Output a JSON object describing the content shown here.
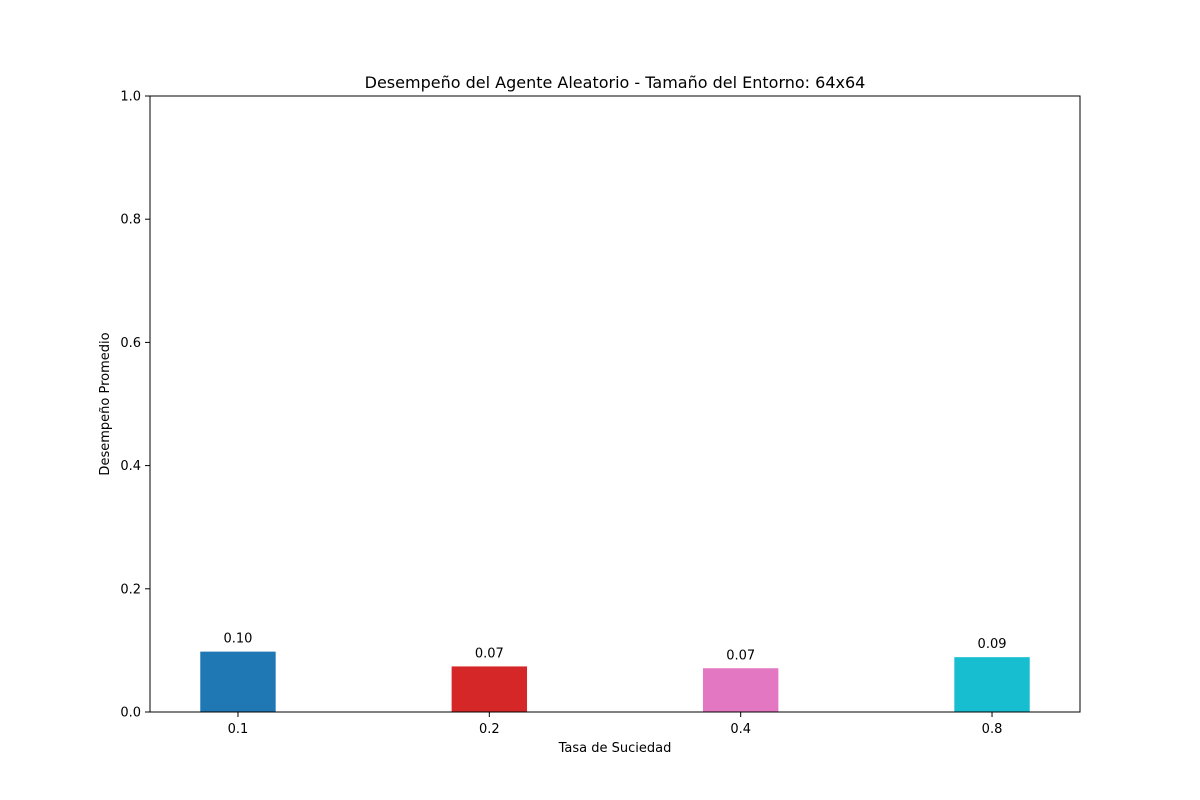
{
  "chart_data": {
    "type": "bar",
    "title": "Desempeño del Agente Aleatorio - Tamaño del Entorno: 64x64",
    "xlabel": "Tasa de Suciedad",
    "ylabel": "Desempeño Promedio",
    "categories": [
      "0.1",
      "0.2",
      "0.4",
      "0.8"
    ],
    "values": [
      0.098,
      0.074,
      0.071,
      0.089
    ],
    "data_labels": [
      "0.10",
      "0.07",
      "0.07",
      "0.09"
    ],
    "colors": [
      "#1f77b4",
      "#d62728",
      "#e377c2",
      "#17becf"
    ],
    "ylim": [
      0,
      1.0
    ],
    "yticks": [
      0.0,
      0.2,
      0.4,
      0.6,
      0.8,
      1.0
    ],
    "ytick_labels": [
      "0.0",
      "0.2",
      "0.4",
      "0.6",
      "0.8",
      "1.0"
    ],
    "grid": false,
    "legend": "none"
  }
}
